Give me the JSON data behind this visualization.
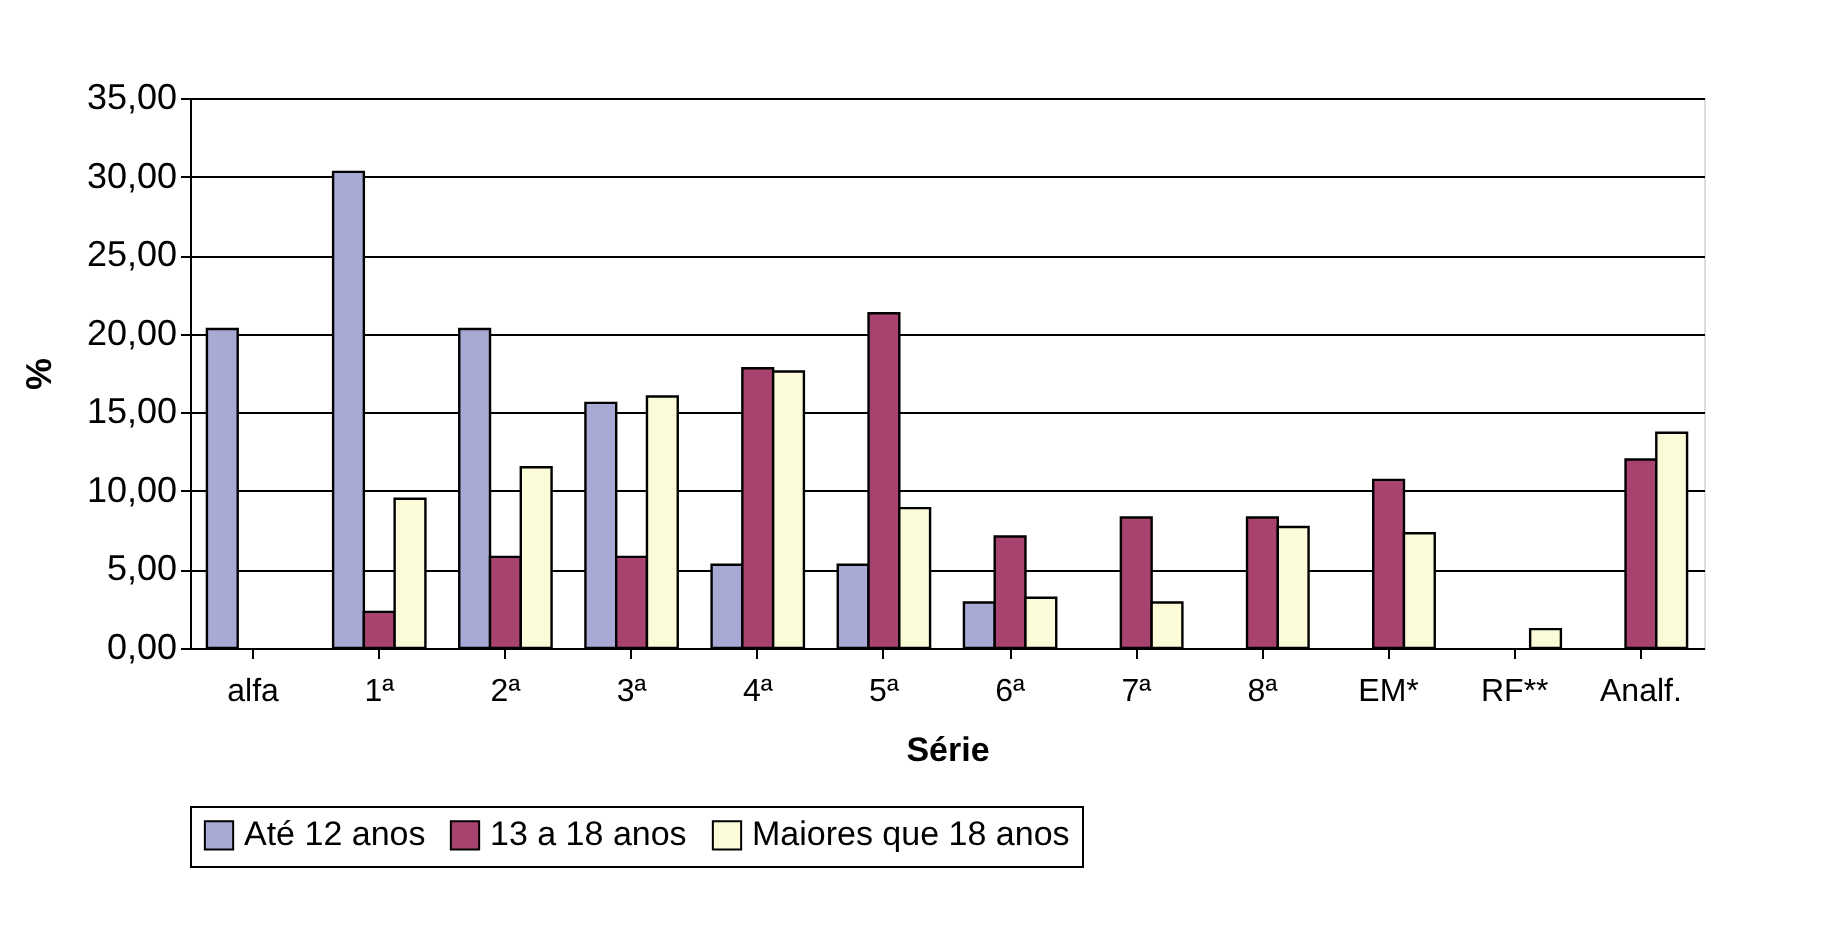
{
  "chart_data": {
    "type": "bar",
    "xlabel": "Série",
    "ylabel": "%",
    "categories": [
      "alfa",
      "1ª",
      "2ª",
      "3ª",
      "4ª",
      "5ª",
      "6ª",
      "7ª",
      "8ª",
      "EM*",
      "RF**",
      "Analf."
    ],
    "series": [
      {
        "name": "Até 12 anos",
        "color": "#a9a9d5",
        "values": [
          20.3,
          30.3,
          20.3,
          15.6,
          5.3,
          5.3,
          2.9,
          null,
          null,
          null,
          null,
          null
        ]
      },
      {
        "name": "13 a 18 anos",
        "color": "#a8426f",
        "values": [
          null,
          2.3,
          5.8,
          5.8,
          17.8,
          21.3,
          7.1,
          8.3,
          8.3,
          10.7,
          null,
          12.0
        ]
      },
      {
        "name": "Maiores que 18 anos",
        "color": "#fbfbd7",
        "values": [
          null,
          9.5,
          11.5,
          16.0,
          17.6,
          8.9,
          3.2,
          2.9,
          7.7,
          7.3,
          1.2,
          13.7
        ]
      }
    ],
    "ylim": [
      0,
      35
    ],
    "yticks": [
      {
        "value": 0,
        "label": "0,00"
      },
      {
        "value": 5,
        "label": "5,00"
      },
      {
        "value": 10,
        "label": "10,00"
      },
      {
        "value": 15,
        "label": "15,00"
      },
      {
        "value": 20,
        "label": "20,00"
      },
      {
        "value": 25,
        "label": "25,00"
      },
      {
        "value": 30,
        "label": "30,00"
      },
      {
        "value": 35,
        "label": "35,00"
      }
    ],
    "grid": "y",
    "legend": "bottom"
  }
}
